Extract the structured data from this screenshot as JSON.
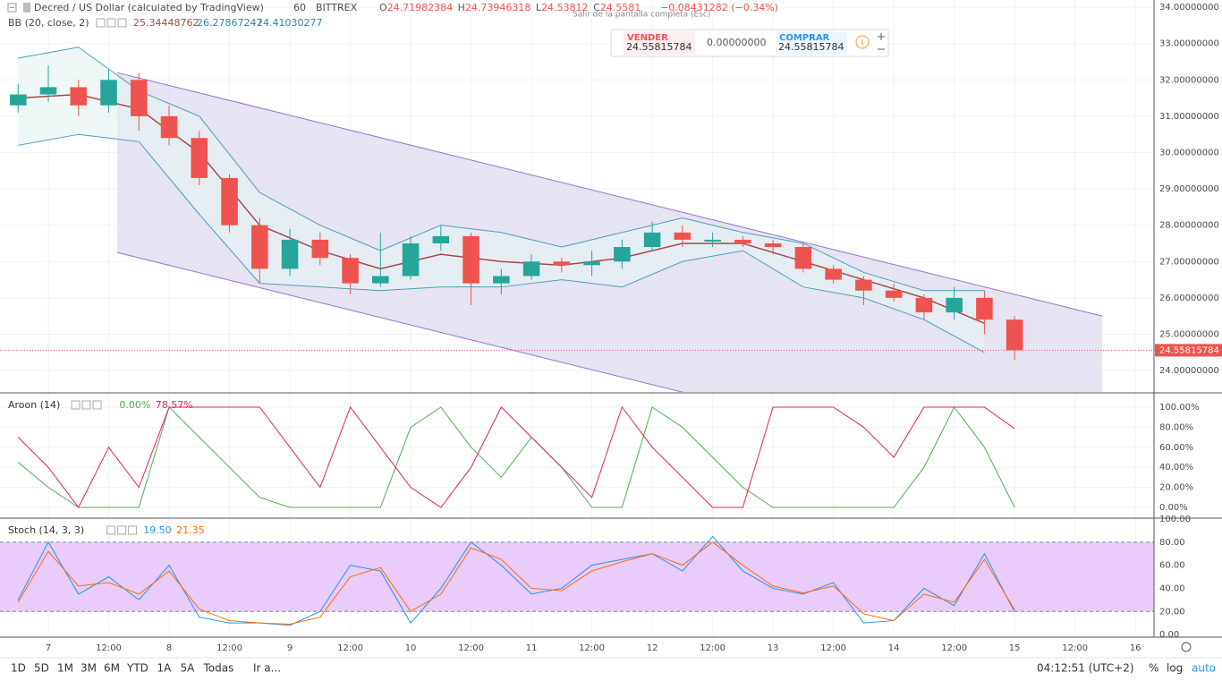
{
  "header": {
    "title": "Decred / US Dollar (calculated by TradingView)",
    "interval": "60",
    "exchange": "BITTREX",
    "ohlc": [
      {
        "label": "O",
        "value": "24.71982384"
      },
      {
        "label": "H",
        "value": "24.73946318"
      },
      {
        "label": "L",
        "value": "24.53812"
      },
      {
        "label": "C",
        "value": "24.5581"
      }
    ],
    "change": "−0.08431282 (−0.34%)",
    "bb_label": "BB (20, close, 2)",
    "bb_values": [
      "25.34448762",
      "26.27867247",
      "24.41030277"
    ],
    "tooltip": "Salir de la pantalla completa (Esc)"
  },
  "trade_panel": {
    "sell_label": "VENDER",
    "sell_price": "24.55815784",
    "quantity": "0.00000000",
    "buy_label": "COMPRAR",
    "buy_price": "24.55815784"
  },
  "toolbar": {
    "ranges": [
      "1D",
      "5D",
      "1M",
      "3M",
      "6M",
      "YTD",
      "1A",
      "5A",
      "Todas"
    ],
    "goto": "Ir a...",
    "clock": "04:12:51 (UTC+2)",
    "percent": "%",
    "log": "log",
    "auto": "auto"
  },
  "chart_data": [
    {
      "type": "candlestick",
      "up_color": "#26a69a",
      "down_color": "#ef5350",
      "x": [
        -6,
        0,
        6,
        12,
        18,
        24,
        30,
        36,
        42,
        48,
        54,
        60,
        66,
        72,
        78,
        84,
        90,
        96,
        102,
        108,
        114,
        120,
        126,
        132,
        138,
        144,
        150,
        156,
        162,
        168,
        174,
        180,
        186,
        192
      ],
      "open": [
        31.3,
        31.6,
        31.8,
        31.3,
        32.0,
        31.0,
        30.4,
        29.3,
        28.0,
        26.8,
        27.6,
        27.1,
        26.4,
        26.6,
        27.5,
        27.7,
        26.4,
        26.6,
        27.0,
        26.9,
        27.0,
        27.4,
        27.8,
        27.55,
        27.6,
        27.5,
        27.4,
        26.8,
        26.5,
        26.2,
        26.0,
        25.6,
        26.0,
        25.4
      ],
      "high": [
        31.9,
        32.4,
        32.0,
        32.3,
        32.2,
        31.3,
        30.6,
        29.4,
        28.2,
        27.9,
        27.8,
        27.2,
        27.8,
        27.7,
        28.0,
        27.8,
        26.8,
        27.2,
        27.1,
        27.3,
        27.6,
        28.1,
        28.0,
        27.8,
        27.7,
        27.6,
        27.5,
        26.9,
        26.6,
        26.4,
        26.1,
        26.3,
        26.2,
        25.5
      ],
      "low": [
        31.1,
        31.4,
        31.0,
        31.1,
        30.6,
        30.2,
        29.1,
        27.8,
        26.4,
        26.6,
        26.9,
        26.1,
        26.3,
        26.5,
        27.3,
        25.8,
        26.1,
        26.5,
        26.7,
        26.6,
        26.8,
        27.3,
        27.4,
        27.4,
        27.4,
        27.2,
        26.7,
        26.4,
        25.8,
        25.9,
        25.4,
        25.4,
        25.0,
        24.3
      ],
      "close": [
        31.6,
        31.8,
        31.3,
        32.0,
        31.0,
        30.4,
        29.3,
        28.0,
        26.8,
        27.6,
        27.1,
        26.4,
        26.6,
        27.5,
        27.7,
        26.4,
        26.6,
        27.0,
        26.9,
        27.0,
        27.4,
        27.8,
        27.6,
        27.6,
        27.5,
        27.4,
        26.8,
        26.5,
        26.2,
        26.0,
        25.6,
        26.0,
        25.4,
        24.56
      ],
      "bands": {
        "x": [
          -6,
          6,
          18,
          30,
          42,
          54,
          66,
          78,
          90,
          102,
          114,
          126,
          138,
          150,
          162,
          174,
          186
        ],
        "fill": "#e6f4f1",
        "lines": [
          {
            "color": "#a34a4a",
            "values": [
              31.5,
              31.6,
              31.2,
              30.0,
              28.0,
              27.3,
              26.8,
              27.2,
              27.0,
              26.9,
              27.1,
              27.5,
              27.5,
              27.0,
              26.5,
              26.0,
              25.3
            ]
          },
          {
            "color": "#4a9fb5",
            "values": [
              32.6,
              32.9,
              31.7,
              31.0,
              28.9,
              28.0,
              27.3,
              28.0,
              27.8,
              27.4,
              27.8,
              28.2,
              27.8,
              27.5,
              26.7,
              26.2,
              26.2
            ]
          },
          {
            "color": "#4a9fb5",
            "values": [
              30.2,
              30.5,
              30.3,
              28.3,
              26.4,
              26.3,
              26.2,
              26.3,
              26.3,
              26.5,
              26.3,
              27.0,
              27.3,
              26.3,
              26.0,
              25.4,
              24.5
            ]
          }
        ]
      },
      "channel": {
        "color": "#9c6fd6",
        "fill": "#e0dcef",
        "upper": [
          [
            13.7,
            32.2
          ],
          [
            209.4,
            25.5
          ]
        ],
        "lower": [
          [
            13.7,
            27.25
          ],
          [
            209.4,
            20.55
          ]
        ]
      },
      "last_price": 24.55815784,
      "last_color": "#ef5350",
      "xlim": [
        -9.6,
        219.7
      ],
      "ylim": [
        23.41,
        34.2
      ],
      "xticks": [
        {
          "value": 0,
          "label": "7"
        },
        {
          "value": 12,
          "label": "12:00"
        },
        {
          "value": 24,
          "label": "8"
        },
        {
          "value": 36,
          "label": "12:00"
        },
        {
          "value": 48,
          "label": "9"
        },
        {
          "value": 60,
          "label": "12:00"
        },
        {
          "value": 72,
          "label": "10"
        },
        {
          "value": 84,
          "label": "12:00"
        },
        {
          "value": 96,
          "label": "11"
        },
        {
          "value": 108,
          "label": "12:00"
        },
        {
          "value": 120,
          "label": "12"
        },
        {
          "value": 132,
          "label": "12:00"
        },
        {
          "value": 144,
          "label": "13"
        },
        {
          "value": 156,
          "label": "12:00"
        },
        {
          "value": 168,
          "label": "14"
        },
        {
          "value": 180,
          "label": "12:00"
        },
        {
          "value": 192,
          "label": "15"
        },
        {
          "value": 204,
          "label": "12:00"
        },
        {
          "value": 216,
          "label": "16"
        }
      ],
      "yticks": [
        {
          "value": 24,
          "label": "24.00000000"
        },
        {
          "value": 25,
          "label": "25.00000000"
        },
        {
          "value": 26,
          "label": "26.00000000"
        },
        {
          "value": 27,
          "label": "27.00000000"
        },
        {
          "value": 28,
          "label": "28.00000000"
        },
        {
          "value": 29,
          "label": "29.00000000"
        },
        {
          "value": 30,
          "label": "30.00000000"
        },
        {
          "value": 31,
          "label": "31.00000000"
        },
        {
          "value": 32,
          "label": "32.00000000"
        },
        {
          "value": 33,
          "label": "33.00000000"
        },
        {
          "value": 34,
          "label": "34.00000000"
        }
      ],
      "grid": true
    },
    {
      "type": "line",
      "title": "Aroon (14)",
      "legend_values": [
        "0.00%",
        "78.57%"
      ],
      "x": [
        -6,
        0,
        6,
        12,
        18,
        24,
        30,
        36,
        42,
        48,
        54,
        60,
        66,
        72,
        78,
        84,
        90,
        96,
        102,
        108,
        114,
        120,
        126,
        132,
        138,
        144,
        150,
        156,
        162,
        168,
        174,
        180,
        186,
        192
      ],
      "series": [
        {
          "color": "#4caf50",
          "values": [
            45,
            20,
            0,
            0,
            0,
            100,
            70,
            40,
            10,
            0,
            0,
            0,
            0,
            80,
            100,
            60,
            30,
            70,
            40,
            0,
            0,
            100,
            80,
            50,
            20,
            0,
            0,
            0,
            0,
            0,
            40,
            100,
            60,
            0
          ]
        },
        {
          "color": "#e91e63",
          "values": [
            70,
            40,
            0,
            60,
            20,
            100,
            100,
            100,
            100,
            60,
            20,
            100,
            60,
            20,
            0,
            40,
            100,
            70,
            40,
            10,
            100,
            60,
            30,
            0,
            0,
            100,
            100,
            100,
            80,
            50,
            100,
            100,
            100,
            78.57
          ]
        }
      ],
      "xlim": [
        -9.6,
        219.7
      ],
      "ylim": [
        -9.8,
        113.4
      ],
      "yticks": [
        {
          "value": 0,
          "label": "0.00%"
        },
        {
          "value": 20,
          "label": "20.00%"
        },
        {
          "value": 40,
          "label": "40.00%"
        },
        {
          "value": 60,
          "label": "60.00%"
        },
        {
          "value": 80,
          "label": "80.00%"
        },
        {
          "value": 100,
          "label": "100.00%"
        }
      ],
      "grid": true
    },
    {
      "type": "line",
      "title": "Stoch (14, 3, 3)",
      "legend_values": [
        "19.50",
        "21.35"
      ],
      "x": [
        -6,
        0,
        6,
        12,
        18,
        24,
        30,
        36,
        42,
        48,
        54,
        60,
        66,
        72,
        78,
        84,
        90,
        96,
        102,
        108,
        114,
        120,
        126,
        132,
        138,
        144,
        150,
        156,
        162,
        168,
        174,
        180,
        186,
        192
      ],
      "series": [
        {
          "color": "#2196f3",
          "values": [
            30,
            80,
            35,
            50,
            30,
            60,
            15,
            10,
            10,
            8,
            20,
            60,
            55,
            10,
            40,
            80,
            60,
            35,
            40,
            60,
            65,
            70,
            55,
            85,
            55,
            40,
            35,
            45,
            10,
            12,
            40,
            25,
            70,
            19.5
          ]
        },
        {
          "color": "#ff6d00",
          "values": [
            28,
            72,
            42,
            45,
            35,
            55,
            22,
            12,
            10,
            9,
            15,
            50,
            58,
            20,
            35,
            75,
            65,
            40,
            38,
            55,
            63,
            70,
            60,
            80,
            60,
            42,
            36,
            42,
            18,
            12,
            35,
            28,
            65,
            21.35
          ]
        }
      ],
      "band": [
        20,
        80
      ],
      "band_fill": "#e9ccfb",
      "xlim": [
        -9.6,
        219.7
      ],
      "ylim": [
        -1.5,
        100
      ],
      "yticks": [
        {
          "value": 0,
          "label": "0.00"
        },
        {
          "value": 20,
          "label": "20.00"
        },
        {
          "value": 40,
          "label": "40.00"
        },
        {
          "value": 60,
          "label": "60.00"
        },
        {
          "value": 80,
          "label": "80.00"
        },
        {
          "value": 100,
          "label": "100.00"
        }
      ],
      "grid": true
    }
  ]
}
